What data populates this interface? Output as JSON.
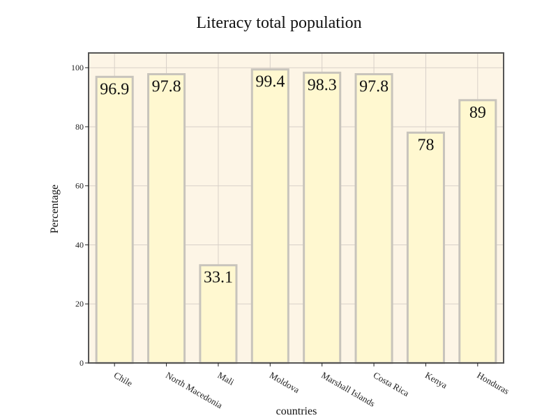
{
  "chart_data": {
    "type": "bar",
    "title": "Literacy total population",
    "xlabel": "countries",
    "ylabel": "Percentage",
    "categories": [
      "Chile",
      "North Macedonia",
      "Mali",
      "Moldova",
      "Marshall Islands",
      "Costa Rica",
      "Kenya",
      "Honduras"
    ],
    "values": [
      96.9,
      97.8,
      33.1,
      99.4,
      98.3,
      97.8,
      78,
      89
    ],
    "value_labels": [
      "96.9",
      "97.8",
      "33.1",
      "99.4",
      "98.3",
      "97.8",
      "78",
      "89"
    ],
    "yticks": [
      0,
      20,
      40,
      60,
      80,
      100
    ],
    "ylim": [
      0,
      105
    ],
    "grid": true,
    "colors": {
      "bar_fill": "#fff8d0",
      "bar_stroke": "#c8c4bc",
      "plot_bg": "#fdf5e6",
      "grid": "#d8d0c8",
      "axis": "#555555"
    }
  }
}
